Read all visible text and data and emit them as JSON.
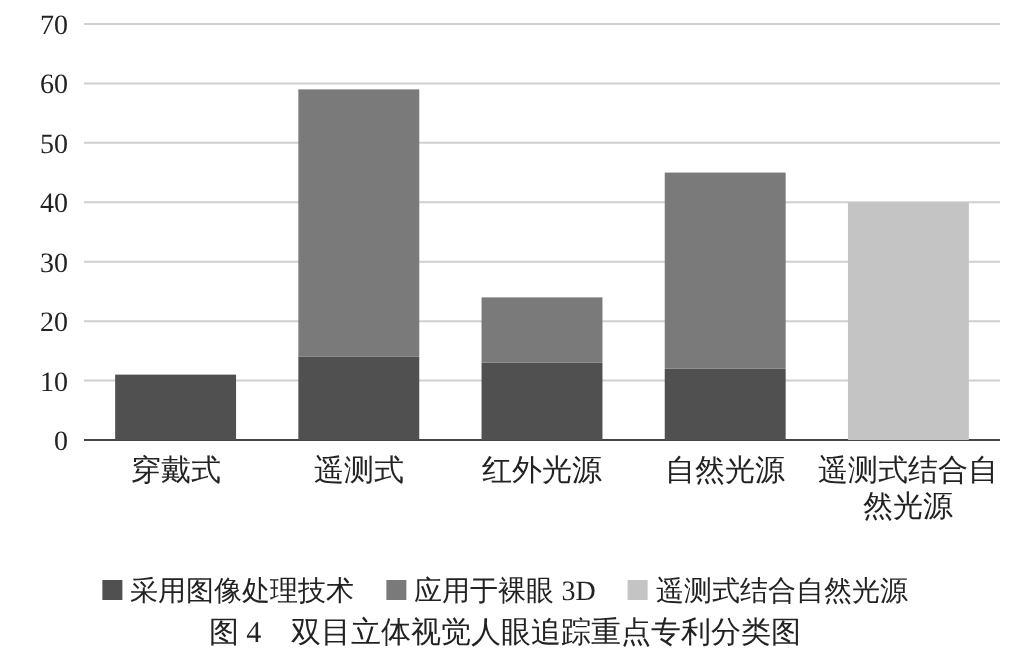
{
  "chart_data": {
    "type": "bar",
    "stacked": true,
    "title": "图 4　双目立体视觉人眼追踪重点专利分类图",
    "categories": [
      "穿戴式",
      "遥测式",
      "红外光源",
      "自然光源",
      "遥测式结合自然光源"
    ],
    "series": [
      {
        "name": "采用图像处理技术",
        "color": "#505050",
        "values": [
          11,
          14,
          13,
          12,
          null
        ]
      },
      {
        "name": "应用于裸眼 3D",
        "color": "#7a7a7a",
        "values": [
          null,
          45,
          11,
          33,
          null
        ]
      },
      {
        "name": "遥测式结合自然光源",
        "color": "#c4c4c4",
        "values": [
          null,
          null,
          null,
          null,
          40
        ]
      }
    ],
    "ylim": [
      0,
      70
    ],
    "yticks": [
      0,
      10,
      20,
      30,
      40,
      50,
      60,
      70
    ],
    "grid": "y",
    "legend": "bottom"
  }
}
